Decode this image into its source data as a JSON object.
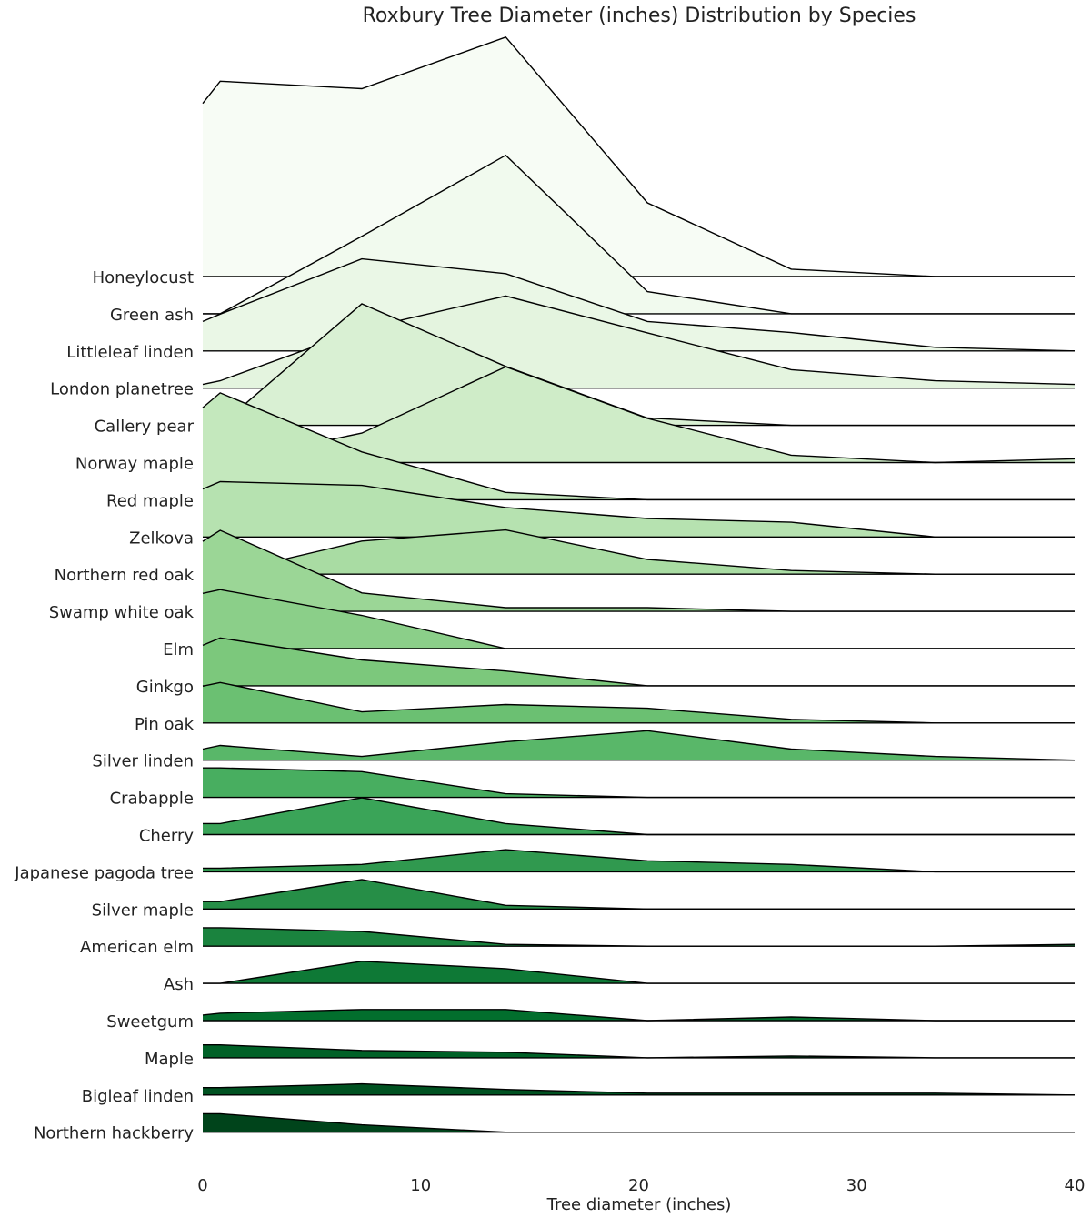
{
  "chart_data": {
    "type": "ridgeline",
    "title": "Roxbury Tree Diameter (inches) Distribution by Species",
    "xlabel": "Tree diameter (inches)",
    "xlim": [
      0,
      40
    ],
    "xticks": [
      0,
      10,
      20,
      30,
      40
    ],
    "x": [
      0,
      0.8,
      7.3,
      13.9,
      20.4,
      27.0,
      33.6,
      40
    ],
    "colormap": "Greens",
    "series": [
      {
        "name": "Honeylocust",
        "values": [
          4.7,
          5.3,
          5.1,
          6.5,
          2.0,
          0.2,
          0.0,
          0.0
        ]
      },
      {
        "name": "Green ash",
        "values": [
          0.0,
          0.0,
          2.1,
          4.3,
          0.6,
          0.0,
          0.0,
          0.0
        ]
      },
      {
        "name": "Littleleaf linden",
        "values": [
          0.8,
          1.0,
          2.5,
          2.1,
          0.8,
          0.5,
          0.1,
          0.0
        ]
      },
      {
        "name": "London planetree",
        "values": [
          0.1,
          0.2,
          1.6,
          2.5,
          1.5,
          0.5,
          0.2,
          0.1
        ]
      },
      {
        "name": "Callery pear",
        "values": [
          0.0,
          0.0,
          3.3,
          1.6,
          0.2,
          0.0,
          0.0,
          0.0
        ]
      },
      {
        "name": "Norway maple",
        "values": [
          0.0,
          0.0,
          0.8,
          2.6,
          1.2,
          0.2,
          0.0,
          0.1
        ]
      },
      {
        "name": "Red maple",
        "values": [
          2.5,
          2.9,
          1.3,
          0.2,
          0.0,
          0.0,
          0.0,
          0.0
        ]
      },
      {
        "name": "Zelkova",
        "values": [
          1.3,
          1.5,
          1.4,
          0.8,
          0.5,
          0.4,
          0.0,
          0.0
        ]
      },
      {
        "name": "Northern red oak",
        "values": [
          0.0,
          0.0,
          0.9,
          1.2,
          0.4,
          0.1,
          0.0,
          0.0
        ]
      },
      {
        "name": "Swamp white oak",
        "values": [
          1.9,
          2.2,
          0.5,
          0.1,
          0.1,
          0.0,
          0.0,
          0.0
        ]
      },
      {
        "name": "Elm",
        "values": [
          1.5,
          1.6,
          0.9,
          0.0,
          0.0,
          0.0,
          0.0,
          0.0
        ]
      },
      {
        "name": "Ginkgo",
        "values": [
          1.1,
          1.3,
          0.7,
          0.4,
          0.0,
          0.0,
          0.0,
          0.0
        ]
      },
      {
        "name": "Pin oak",
        "values": [
          1.0,
          1.1,
          0.3,
          0.5,
          0.4,
          0.1,
          0.0,
          0.0
        ]
      },
      {
        "name": "Silver linden",
        "values": [
          0.3,
          0.4,
          0.1,
          0.5,
          0.8,
          0.3,
          0.1,
          0.0
        ]
      },
      {
        "name": "Crabapple",
        "values": [
          0.8,
          0.8,
          0.7,
          0.1,
          0.0,
          0.0,
          0.0,
          0.0
        ]
      },
      {
        "name": "Cherry",
        "values": [
          0.3,
          0.3,
          1.0,
          0.3,
          0.0,
          0.0,
          0.0,
          0.0
        ]
      },
      {
        "name": "Japanese pagoda tree",
        "values": [
          0.1,
          0.1,
          0.2,
          0.6,
          0.3,
          0.2,
          0.0,
          0.0
        ]
      },
      {
        "name": "Silver maple",
        "values": [
          0.2,
          0.2,
          0.8,
          0.1,
          0.0,
          0.0,
          0.0,
          0.0
        ]
      },
      {
        "name": "American elm",
        "values": [
          0.5,
          0.5,
          0.4,
          0.05,
          0.0,
          0.0,
          0.0,
          0.05
        ]
      },
      {
        "name": "Ash",
        "values": [
          0.0,
          0.0,
          0.6,
          0.4,
          0.0,
          0.0,
          0.0,
          0.0
        ]
      },
      {
        "name": "Sweetgum",
        "values": [
          0.15,
          0.2,
          0.3,
          0.3,
          0.0,
          0.1,
          0.0,
          0.0
        ]
      },
      {
        "name": "Maple",
        "values": [
          0.35,
          0.35,
          0.2,
          0.15,
          0.0,
          0.05,
          0.0,
          0.0
        ]
      },
      {
        "name": "Bigleaf linden",
        "values": [
          0.2,
          0.2,
          0.3,
          0.15,
          0.05,
          0.05,
          0.05,
          0.0
        ]
      },
      {
        "name": "Northern hackberry",
        "values": [
          0.5,
          0.5,
          0.2,
          0.0,
          0.0,
          0.0,
          0.0,
          0.0
        ]
      }
    ]
  }
}
